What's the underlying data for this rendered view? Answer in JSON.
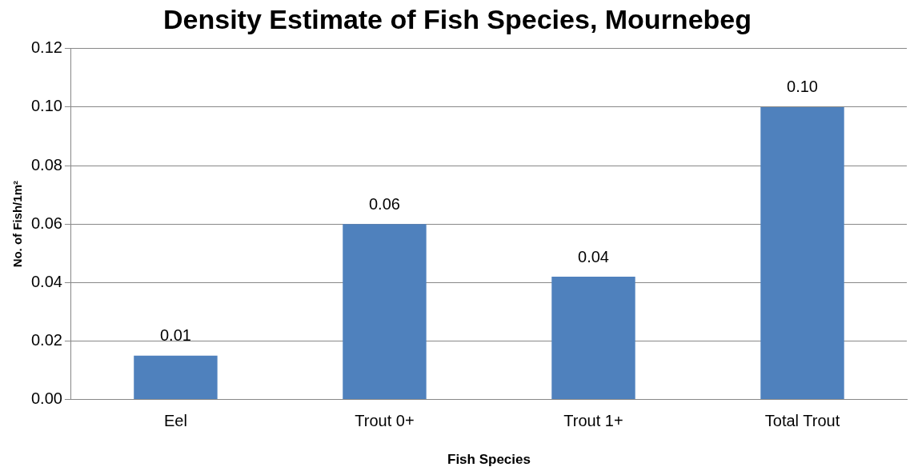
{
  "chart_data": {
    "type": "bar",
    "title": "Density Estimate of Fish Species, Mournebeg",
    "xlabel": "Fish Species",
    "ylabel": "No. of Fish/1m²",
    "categories": [
      "Eel",
      "Trout 0+",
      "Trout 1+",
      "Total Trout"
    ],
    "values": [
      0.015,
      0.06,
      0.042,
      0.1
    ],
    "value_labels": [
      "0.01",
      "0.06",
      "0.04",
      "0.10"
    ],
    "color": "#4f81bd",
    "ylim": [
      0,
      0.12
    ],
    "yticks": [
      {
        "value": 0,
        "label": "0.00"
      },
      {
        "value": 0.02,
        "label": "0.02"
      },
      {
        "value": 0.04,
        "label": "0.04"
      },
      {
        "value": 0.06,
        "label": "0.06"
      },
      {
        "value": 0.08,
        "label": "0.08"
      },
      {
        "value": 0.1,
        "label": "0.10"
      },
      {
        "value": 0.12,
        "label": "0.12"
      }
    ],
    "grid": "y",
    "legend": false
  }
}
